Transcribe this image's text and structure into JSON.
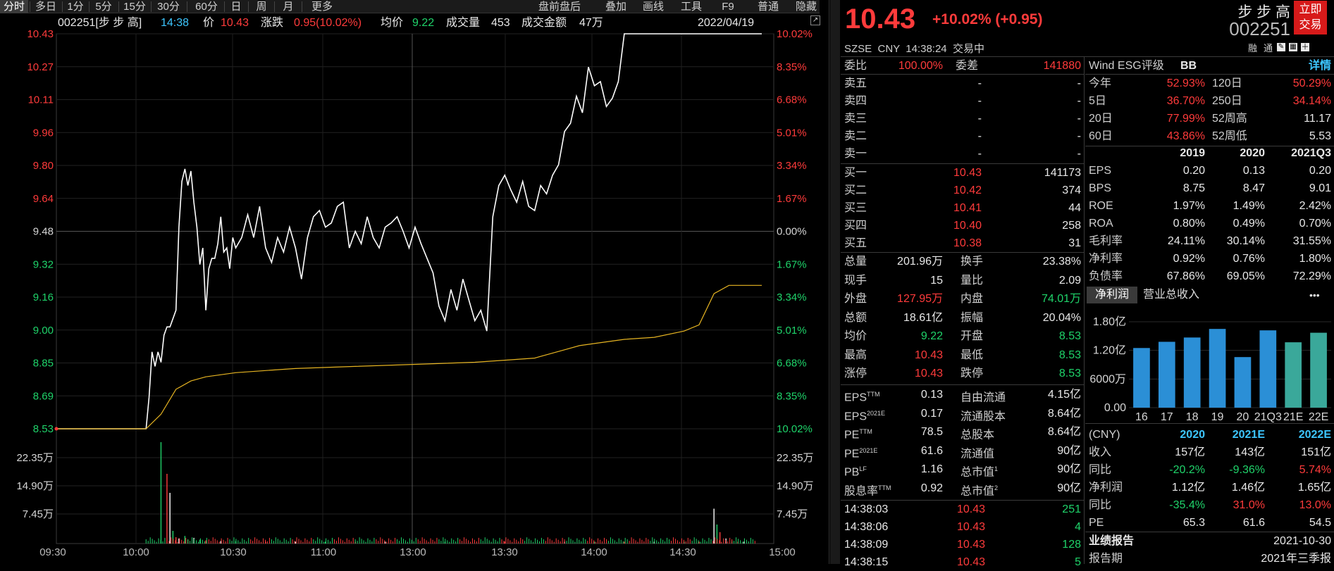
{
  "toolbar": {
    "tabs": [
      "分时",
      "多日",
      "1分",
      "5分",
      "15分",
      "30分",
      "60分",
      "日",
      "周",
      "月",
      "更多"
    ],
    "right_items": [
      "盘前盘后",
      "叠加",
      "画线",
      "工具",
      "F9",
      "普通",
      "隐藏"
    ]
  },
  "infobar": {
    "code_name": "002251[步 步 高]",
    "time": "14:38",
    "price_label": "价",
    "price": "10.43",
    "change_label": "涨跌",
    "change": "0.95(10.02%)",
    "avg_label": "均价",
    "avg": "9.22",
    "vol_label": "成交量",
    "vol": "453",
    "amount_label": "成交金额",
    "amount": "47万",
    "date": "2022/04/19"
  },
  "chart_data": {
    "type": "line",
    "title": "",
    "x_ticks": [
      "09:30",
      "10:00",
      "10:30",
      "11:00",
      "11:30",
      "13:00",
      "13:30",
      "14:00",
      "14:30",
      "15:00"
    ],
    "y_left_ticks": [
      "10.43",
      "10.27",
      "10.11",
      "9.96",
      "9.80",
      "9.64",
      "9.48",
      "9.32",
      "9.16",
      "9.00",
      "8.85",
      "8.69",
      "8.53"
    ],
    "y_right_ticks": [
      "10.02%",
      "8.35%",
      "6.68%",
      "5.01%",
      "3.34%",
      "1.67%",
      "0.00%",
      "1.67%",
      "3.34%",
      "5.01%",
      "6.68%",
      "8.35%",
      "10.02%"
    ],
    "vol_left_ticks": [
      "22.35万",
      "14.90万",
      "7.45万"
    ],
    "vol_right_ticks": [
      "22.35万",
      "14.90万",
      "7.45万"
    ],
    "ylim": [
      8.53,
      10.43
    ],
    "prev_close": 9.48,
    "series": [
      {
        "name": "价",
        "color": "#ffffff",
        "x_min": [
          0,
          30,
          31,
          32,
          33,
          34,
          35,
          36,
          37,
          38,
          40,
          41,
          42,
          43,
          44,
          45,
          46,
          47,
          48,
          49,
          50,
          51,
          52,
          53,
          54,
          55,
          56,
          57,
          58,
          59,
          60,
          62,
          64,
          66,
          68,
          70,
          72,
          74,
          76,
          78,
          80,
          82,
          84,
          86,
          88,
          90,
          92,
          94,
          96,
          98,
          100,
          102,
          104,
          106,
          108,
          110,
          112,
          114,
          116,
          118,
          120,
          122,
          124,
          126,
          128,
          130,
          132,
          134,
          136,
          138,
          140,
          142,
          144,
          146,
          148,
          150,
          152,
          154,
          156,
          158,
          160,
          162,
          164,
          166,
          168,
          170,
          172,
          174,
          176,
          178,
          180,
          182,
          184,
          186,
          188,
          190,
          192,
          194,
          196,
          198,
          200,
          202,
          204,
          206,
          208,
          210,
          212,
          214,
          216,
          218,
          220,
          222,
          224,
          226,
          228,
          230,
          232,
          234,
          236
        ],
        "values": [
          8.53,
          8.53,
          8.68,
          8.9,
          8.83,
          8.9,
          8.85,
          8.98,
          9.02,
          9.02,
          9.1,
          9.5,
          9.72,
          9.78,
          9.7,
          9.77,
          9.62,
          9.5,
          9.32,
          9.4,
          9.1,
          9.3,
          9.35,
          9.35,
          9.42,
          9.55,
          9.38,
          9.4,
          9.3,
          9.45,
          9.4,
          9.45,
          9.56,
          9.45,
          9.6,
          9.4,
          9.33,
          9.45,
          9.38,
          9.5,
          9.4,
          9.25,
          9.45,
          9.55,
          9.58,
          9.5,
          9.52,
          9.6,
          9.62,
          9.4,
          9.48,
          9.42,
          9.55,
          9.45,
          9.4,
          9.5,
          9.52,
          9.55,
          9.48,
          9.4,
          9.5,
          9.42,
          9.35,
          9.28,
          9.12,
          9.05,
          9.2,
          9.1,
          9.25,
          9.15,
          9.05,
          9.1,
          9.0,
          9.55,
          9.7,
          9.75,
          9.68,
          9.62,
          9.72,
          9.6,
          9.58,
          9.7,
          9.66,
          9.75,
          9.8,
          9.96,
          10.0,
          10.13,
          10.05,
          10.27,
          10.18,
          10.2,
          10.08,
          10.12,
          10.2,
          10.43,
          10.43,
          10.43,
          10.43,
          10.43,
          10.43,
          10.43,
          10.43,
          10.43,
          10.43,
          10.43,
          10.43,
          10.43,
          10.43,
          10.43,
          10.43,
          10.43,
          10.43,
          10.43,
          10.43,
          10.43,
          10.43,
          10.43,
          10.43
        ]
      },
      {
        "name": "均价",
        "color": "#e6b422",
        "x_min": [
          0,
          30,
          35,
          40,
          45,
          50,
          60,
          70,
          80,
          100,
          120,
          140,
          150,
          160,
          170,
          175,
          180,
          190,
          200,
          210,
          215,
          220,
          225,
          230,
          236
        ],
        "values": [
          8.53,
          8.53,
          8.6,
          8.72,
          8.76,
          8.78,
          8.8,
          8.81,
          8.82,
          8.83,
          8.84,
          8.85,
          8.86,
          8.87,
          8.91,
          8.93,
          8.94,
          8.96,
          8.97,
          9.0,
          9.03,
          9.18,
          9.22,
          9.22,
          9.22
        ]
      }
    ]
  },
  "header": {
    "price": "10.43",
    "change": "+10.02% (+0.95)",
    "name": "步 步 高",
    "code": "002251",
    "trade_btn_line1": "立即",
    "trade_btn_line2": "交易",
    "sub": "SZSE  CNY  14:38:24  交易中",
    "tag1": "融",
    "tag2": "通"
  },
  "orderbook": {
    "weibi_label": "委比",
    "weibi": "100.00%",
    "weicha_label": "委差",
    "weicha": "141880",
    "asks": [
      {
        "label": "卖五",
        "price": "-",
        "vol": "-"
      },
      {
        "label": "卖四",
        "price": "-",
        "vol": "-"
      },
      {
        "label": "卖三",
        "price": "-",
        "vol": "-"
      },
      {
        "label": "卖二",
        "price": "-",
        "vol": "-"
      },
      {
        "label": "卖一",
        "price": "-",
        "vol": "-"
      }
    ],
    "bids": [
      {
        "label": "买一",
        "price": "10.43",
        "vol": "141173"
      },
      {
        "label": "买二",
        "price": "10.42",
        "vol": "374"
      },
      {
        "label": "买三",
        "price": "10.41",
        "vol": "44"
      },
      {
        "label": "买四",
        "price": "10.40",
        "vol": "258"
      },
      {
        "label": "买五",
        "price": "10.38",
        "vol": "31"
      }
    ]
  },
  "stats": [
    {
      "l1": "总量",
      "v1": "201.96万",
      "c1": "white",
      "l2": "换手",
      "v2": "23.38%",
      "c2": "white"
    },
    {
      "l1": "现手",
      "v1": "15",
      "c1": "white",
      "l2": "量比",
      "v2": "2.09",
      "c2": "white"
    },
    {
      "l1": "外盘",
      "v1": "127.95万",
      "c1": "red",
      "l2": "内盘",
      "v2": "74.01万",
      "c2": "green"
    },
    {
      "l1": "总额",
      "v1": "18.61亿",
      "c1": "white",
      "l2": "振幅",
      "v2": "20.04%",
      "c2": "white"
    },
    {
      "l1": "均价",
      "v1": "9.22",
      "c1": "green",
      "l2": "开盘",
      "v2": "8.53",
      "c2": "green"
    },
    {
      "l1": "最高",
      "v1": "10.43",
      "c1": "red",
      "l2": "最低",
      "v2": "8.53",
      "c2": "green"
    },
    {
      "l1": "涨停",
      "v1": "10.43",
      "c1": "red",
      "l2": "跌停",
      "v2": "8.53",
      "c2": "green"
    }
  ],
  "valuation": [
    {
      "l1": "EPS",
      "s1": "TTM",
      "v1": "0.13",
      "l2": "自由流通",
      "s2": "",
      "v2": "4.15亿"
    },
    {
      "l1": "EPS",
      "s1": "2021E",
      "v1": "0.17",
      "l2": "流通股本",
      "s2": "",
      "v2": "8.64亿"
    },
    {
      "l1": "PE",
      "s1": "TTM",
      "v1": "78.5",
      "l2": "总股本",
      "s2": "",
      "v2": "8.64亿"
    },
    {
      "l1": "PE",
      "s1": "2021E",
      "v1": "61.6",
      "l2": "流通值",
      "s2": "",
      "v2": "90亿"
    },
    {
      "l1": "PB",
      "s1": "LF",
      "v1": "1.16",
      "l2": "总市值",
      "s2": "1",
      "v2": "90亿"
    },
    {
      "l1": "股息率",
      "s1": "TTM",
      "v1": "0.92",
      "l2": "总市值",
      "s2": "2",
      "v2": "90亿"
    }
  ],
  "ticks": [
    {
      "time": "14:38:03",
      "price": "10.43",
      "vol": "251"
    },
    {
      "time": "14:38:06",
      "price": "10.43",
      "vol": "4"
    },
    {
      "time": "14:38:09",
      "price": "10.43",
      "vol": "128"
    },
    {
      "time": "14:38:15",
      "price": "10.43",
      "vol": "5"
    }
  ],
  "esg": {
    "label": "Wind ESG评级",
    "rating": "BB",
    "detail": "详情"
  },
  "returns": [
    {
      "l1": "今年",
      "v1": "52.93%",
      "c1": "red",
      "l2": "120日",
      "v2": "50.29%",
      "c2": "red"
    },
    {
      "l1": "5日",
      "v1": "36.70%",
      "c1": "red",
      "l2": "250日",
      "v2": "34.14%",
      "c2": "red"
    },
    {
      "l1": "20日",
      "v1": "77.99%",
      "c1": "red",
      "l2": "52周高",
      "v2": "11.17",
      "c2": "white"
    },
    {
      "l1": "60日",
      "v1": "43.86%",
      "c1": "red",
      "l2": "52周低",
      "v2": "5.53",
      "c2": "white"
    }
  ],
  "fin_years": [
    "2019",
    "2020",
    "2021Q3"
  ],
  "fin_rows": [
    {
      "label": "EPS",
      "vals": [
        "0.20",
        "0.13",
        "0.20"
      ]
    },
    {
      "label": "BPS",
      "vals": [
        "8.75",
        "8.47",
        "9.01"
      ]
    },
    {
      "label": "ROE",
      "vals": [
        "1.97%",
        "1.49%",
        "2.42%"
      ]
    },
    {
      "label": "ROA",
      "vals": [
        "0.80%",
        "0.49%",
        "0.70%"
      ]
    },
    {
      "label": "毛利率",
      "vals": [
        "24.11%",
        "30.14%",
        "31.55%"
      ]
    },
    {
      "label": "净利率",
      "vals": [
        "0.92%",
        "0.76%",
        "1.80%"
      ]
    },
    {
      "label": "负债率",
      "vals": [
        "67.86%",
        "69.05%",
        "72.29%"
      ]
    }
  ],
  "profit_tabs": [
    "净利润",
    "营业总收入"
  ],
  "more": "•••",
  "bar_chart": {
    "type": "bar",
    "y_ticks": [
      "1.80亿",
      "1.20亿",
      "6000万",
      "0.00"
    ],
    "categories": [
      "16",
      "17",
      "18",
      "19",
      "20",
      "21Q3",
      "21E",
      "22E"
    ],
    "values": [
      1.25,
      1.38,
      1.47,
      1.65,
      1.06,
      1.62,
      1.37,
      1.57
    ],
    "ylim": [
      0,
      1.8
    ],
    "colors": [
      "#2b8fd6",
      "#2b8fd6",
      "#2b8fd6",
      "#2b8fd6",
      "#2b8fd6",
      "#2b8fd6",
      "#3aa89a",
      "#3aa89a"
    ]
  },
  "forecast": {
    "unit": "(CNY)",
    "years": [
      "2020",
      "2021E",
      "2022E"
    ],
    "rows": [
      {
        "label": "收入",
        "vals": [
          "157亿",
          "143亿",
          "151亿"
        ],
        "colors": [
          "white",
          "white",
          "white"
        ]
      },
      {
        "label": "同比",
        "vals": [
          "-20.2%",
          "-9.36%",
          "5.74%"
        ],
        "colors": [
          "green",
          "green",
          "red"
        ]
      },
      {
        "label": "净利润",
        "vals": [
          "1.12亿",
          "1.46亿",
          "1.65亿"
        ],
        "colors": [
          "white",
          "white",
          "white"
        ]
      },
      {
        "label": "同比",
        "vals": [
          "-35.4%",
          "31.0%",
          "13.0%"
        ],
        "colors": [
          "green",
          "red",
          "red"
        ]
      },
      {
        "label": "PE",
        "vals": [
          "65.3",
          "61.6",
          "54.5"
        ],
        "colors": [
          "white",
          "white",
          "white"
        ]
      }
    ]
  },
  "report": {
    "label": "业绩报告",
    "date": "2021-10-30",
    "label2": "报告期",
    "value2": "2021年三季报"
  }
}
